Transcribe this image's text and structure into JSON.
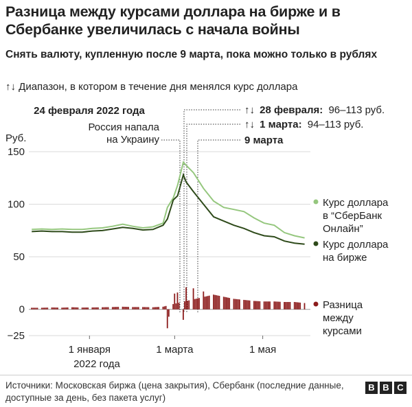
{
  "header": {
    "title": "Разница между курсами доллара на бирже и в Сбербанке увеличилась с начала войны",
    "subtitle": "Снять валюту, купленную после 9 марта, пока можно только в рублях",
    "range_icon": "↑↓",
    "range_note": "Диапазон, в котором в течение дня менялся курс доллара"
  },
  "annotations": {
    "feb24_label": "24 февраля 2022 года",
    "invasion_label_1": "Россия напала",
    "invasion_label_2": "на Украину",
    "feb28_date": "28 февраля:",
    "feb28_range": "96–113 руб.",
    "mar1_date": "1 марта:",
    "mar1_range": "94–113 руб.",
    "mar9_label": "9 марта",
    "range_icon": "↑↓"
  },
  "axis": {
    "y_unit": "Руб.",
    "y_ticks": [
      "150",
      "100",
      "50",
      "0",
      "−25"
    ],
    "x_ticks": [
      "1 января",
      "1 марта",
      "1 мая"
    ],
    "x_year": "2022 года"
  },
  "legend": {
    "sber_1": "Курс доллара",
    "sber_2": "в “СберБанк",
    "sber_3": "Онлайн”",
    "exchange_1": "Курс доллара",
    "exchange_2": "на бирже",
    "diff_1": "Разница",
    "diff_2": "между",
    "diff_3": "курсами"
  },
  "footer": {
    "source": "Источники: Московская биржа (цена закрытия), Сбербанк (последние данные, доступные за день, без пакета услуг)",
    "logo": [
      "B",
      "B",
      "C"
    ]
  },
  "colors": {
    "sber": "#95c77e",
    "exchange": "#2e4a1a",
    "difference": "#8c1c1c",
    "grid": "#d9d9d9"
  },
  "chart_data": {
    "type": "line",
    "x_start": "2021-11-22",
    "ylim": [
      -25,
      150
    ],
    "y_ticks": [
      150,
      100,
      50,
      0,
      -25
    ],
    "series": [
      {
        "name": "Курс доллара в “СберБанк Онлайн”",
        "points": [
          [
            "2021-11-22",
            76
          ],
          [
            "2021-11-29",
            76.5
          ],
          [
            "2021-12-06",
            76
          ],
          [
            "2021-12-13",
            76.5
          ],
          [
            "2021-12-20",
            76
          ],
          [
            "2021-12-27",
            76
          ],
          [
            "2022-01-03",
            77
          ],
          [
            "2022-01-10",
            77.5
          ],
          [
            "2022-01-17",
            79
          ],
          [
            "2022-01-24",
            81
          ],
          [
            "2022-01-31",
            79
          ],
          [
            "2022-02-07",
            77.5
          ],
          [
            "2022-02-14",
            78.5
          ],
          [
            "2022-02-21",
            82
          ],
          [
            "2022-02-24",
            97
          ],
          [
            "2022-02-28",
            106
          ],
          [
            "2022-03-03",
            118
          ],
          [
            "2022-03-07",
            140
          ],
          [
            "2022-03-09",
            137
          ],
          [
            "2022-03-14",
            130
          ],
          [
            "2022-03-21",
            115
          ],
          [
            "2022-03-28",
            103
          ],
          [
            "2022-04-04",
            97
          ],
          [
            "2022-04-11",
            95
          ],
          [
            "2022-04-18",
            93
          ],
          [
            "2022-04-25",
            87
          ],
          [
            "2022-05-02",
            82
          ],
          [
            "2022-05-09",
            80
          ],
          [
            "2022-05-16",
            73
          ],
          [
            "2022-05-23",
            70
          ],
          [
            "2022-05-30",
            68
          ]
        ]
      },
      {
        "name": "Курс доллара на бирже",
        "points": [
          [
            "2021-11-22",
            74
          ],
          [
            "2021-11-29",
            74.5
          ],
          [
            "2021-12-06",
            74
          ],
          [
            "2021-12-13",
            74
          ],
          [
            "2021-12-20",
            73.5
          ],
          [
            "2021-12-27",
            73.5
          ],
          [
            "2022-01-03",
            74.5
          ],
          [
            "2022-01-10",
            75
          ],
          [
            "2022-01-17",
            76.5
          ],
          [
            "2022-01-24",
            78
          ],
          [
            "2022-01-31",
            77
          ],
          [
            "2022-02-07",
            75.5
          ],
          [
            "2022-02-14",
            76
          ],
          [
            "2022-02-21",
            80
          ],
          [
            "2022-02-24",
            86
          ],
          [
            "2022-02-28",
            104
          ],
          [
            "2022-03-03",
            108
          ],
          [
            "2022-03-07",
            128
          ],
          [
            "2022-03-09",
            121
          ],
          [
            "2022-03-14",
            112
          ],
          [
            "2022-03-21",
            100
          ],
          [
            "2022-03-28",
            88
          ],
          [
            "2022-04-04",
            84
          ],
          [
            "2022-04-11",
            80
          ],
          [
            "2022-04-18",
            77
          ],
          [
            "2022-04-25",
            73
          ],
          [
            "2022-05-02",
            70
          ],
          [
            "2022-05-09",
            69
          ],
          [
            "2022-05-16",
            65
          ],
          [
            "2022-05-23",
            63
          ],
          [
            "2022-05-30",
            62
          ]
        ]
      },
      {
        "name": "Разница между курсами",
        "type": "bar",
        "points": [
          [
            "2021-11-22",
            1.5
          ],
          [
            "2021-11-29",
            1.5
          ],
          [
            "2021-12-06",
            1.8
          ],
          [
            "2021-12-13",
            1.6
          ],
          [
            "2021-12-20",
            2
          ],
          [
            "2021-12-27",
            1.7
          ],
          [
            "2022-01-03",
            1.8
          ],
          [
            "2022-01-10",
            2
          ],
          [
            "2022-01-17",
            2.2
          ],
          [
            "2022-01-24",
            2.5
          ],
          [
            "2022-01-31",
            2.2
          ],
          [
            "2022-02-07",
            2.2
          ],
          [
            "2022-02-14",
            2
          ],
          [
            "2022-02-21",
            2.5
          ],
          [
            "2022-02-24",
            -18
          ],
          [
            "2022-02-25",
            -7
          ],
          [
            "2022-02-28",
            5
          ],
          [
            "2022-03-01",
            15
          ],
          [
            "2022-03-03",
            16
          ],
          [
            "2022-03-07",
            -10
          ],
          [
            "2022-03-09",
            21
          ],
          [
            "2022-03-14",
            20
          ],
          [
            "2022-03-21",
            17
          ],
          [
            "2022-03-28",
            14
          ],
          [
            "2022-04-04",
            12
          ],
          [
            "2022-04-11",
            10
          ],
          [
            "2022-04-18",
            9
          ],
          [
            "2022-04-25",
            8
          ],
          [
            "2022-05-02",
            7.5
          ],
          [
            "2022-05-09",
            7.5
          ],
          [
            "2022-05-16",
            7
          ],
          [
            "2022-05-23",
            7
          ],
          [
            "2022-05-30",
            6
          ]
        ]
      }
    ],
    "x_ticks": [
      [
        "2022-01-01",
        "1 января"
      ],
      [
        "2022-03-01",
        "1 марта"
      ],
      [
        "2022-05-01",
        "1 мая"
      ]
    ]
  }
}
